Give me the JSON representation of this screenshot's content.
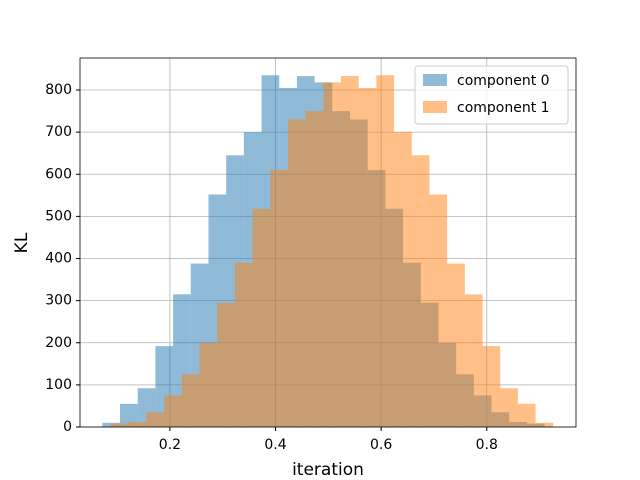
{
  "chart_data": {
    "type": "histogram",
    "xlabel": "iteration",
    "ylabel": "KL",
    "series": [
      {
        "name": "component 0",
        "color": "#1f77b4",
        "alpha": 0.5,
        "bins": [
          0.072,
          0.1055,
          0.139,
          0.1725,
          0.206,
          0.2395,
          0.273,
          0.3065,
          0.34,
          0.3735,
          0.407,
          0.4405,
          0.474,
          0.5075,
          0.541,
          0.5745,
          0.608,
          0.6415,
          0.675,
          0.7085,
          0.742,
          0.7755,
          0.809,
          0.8425,
          0.876,
          0.9095
        ],
        "values": [
          10,
          55,
          92,
          192,
          315,
          388,
          552,
          645,
          700,
          835,
          805,
          833,
          818,
          750,
          730,
          610,
          518,
          390,
          295,
          200,
          125,
          75,
          35,
          12,
          8
        ]
      },
      {
        "name": "component 1",
        "color": "#ff7f0e",
        "alpha": 0.5,
        "bins": [
          0.0885,
          0.122,
          0.1555,
          0.189,
          0.2225,
          0.256,
          0.2895,
          0.323,
          0.3565,
          0.39,
          0.4235,
          0.457,
          0.4905,
          0.524,
          0.5575,
          0.591,
          0.6245,
          0.658,
          0.6915,
          0.725,
          0.7585,
          0.792,
          0.8255,
          0.859,
          0.8925,
          0.926
        ],
        "values": [
          8,
          12,
          35,
          75,
          125,
          200,
          295,
          390,
          518,
          610,
          730,
          750,
          818,
          833,
          805,
          835,
          700,
          645,
          552,
          388,
          315,
          192,
          92,
          55,
          10
        ]
      }
    ],
    "xlim": [
      0.0297,
      0.969
    ],
    "ylim": [
      0,
      876
    ],
    "xticks": [
      0.2,
      0.4,
      0.6,
      0.8
    ],
    "yticks": [
      0,
      100,
      200,
      300,
      400,
      500,
      600,
      700,
      800
    ],
    "grid": true,
    "legend": "upper right"
  }
}
